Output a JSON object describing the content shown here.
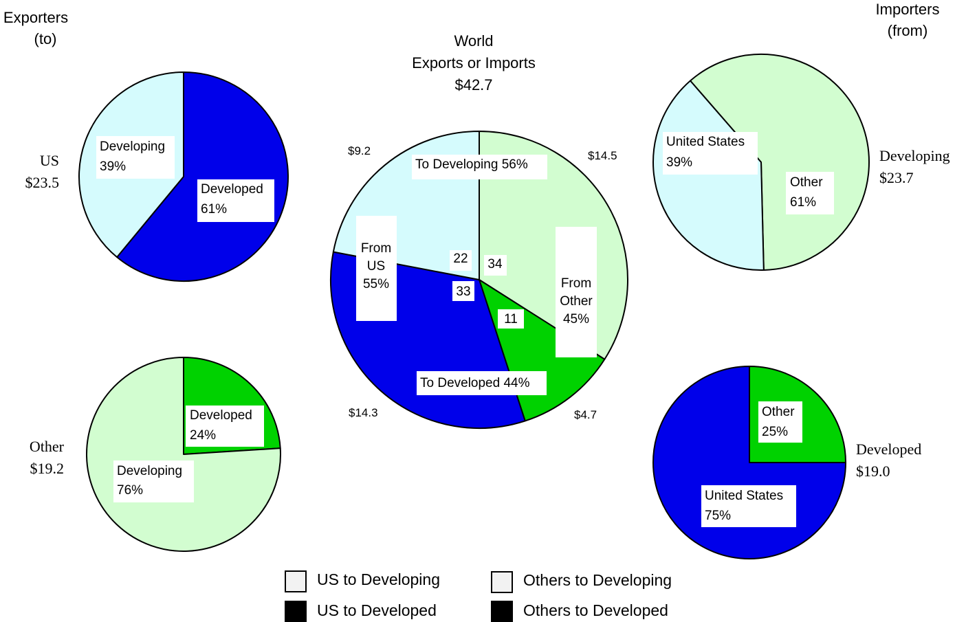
{
  "header": {
    "exporters_line1": "Exporters",
    "exporters_line2": "(to)",
    "importers_line1": "Importers",
    "importers_line2": "(from)"
  },
  "world_title": {
    "line1": "World",
    "line2": "Exports or Imports",
    "line3": "$42.7"
  },
  "side_labels": {
    "us": {
      "name": "US",
      "amount": "$23.5"
    },
    "other": {
      "name": "Other",
      "amount": "$19.2"
    },
    "developing": {
      "name": "Developing",
      "amount": "$23.7"
    },
    "developed": {
      "name": "Developed",
      "amount": "$19.0"
    }
  },
  "colors": {
    "us_to_developing": "#d5fbfd",
    "us_to_developed": "#0000ea",
    "others_to_developing": "#d2fdd0",
    "others_to_developed": "#00d200",
    "outline": "#000000"
  },
  "legend": {
    "items": [
      {
        "label": "US to Developing",
        "fill": "#f2f2f2"
      },
      {
        "label": "Others to Developing",
        "fill": "#f2f2f2"
      },
      {
        "label": "US to Developed",
        "fill": "#000000"
      },
      {
        "label": "Others to Developed",
        "fill": "#000000"
      }
    ]
  },
  "chart_data": [
    {
      "type": "pie",
      "id": "us_exporters",
      "slices": [
        {
          "name": "Developed",
          "value": 61,
          "label": "61%",
          "color": "#0000ea"
        },
        {
          "name": "Developing",
          "value": 39,
          "label": "39%",
          "color": "#d5fbfd"
        }
      ]
    },
    {
      "type": "pie",
      "id": "other_exporters",
      "slices": [
        {
          "name": "Developed",
          "value": 24,
          "label": "24%",
          "color": "#00d200"
        },
        {
          "name": "Developing",
          "value": 76,
          "label": "76%",
          "color": "#d2fdd0"
        }
      ]
    },
    {
      "type": "pie",
      "id": "world",
      "slices": [
        {
          "name": "Others to Developing",
          "value": 34,
          "amount": "$14.5",
          "color": "#d2fdd0"
        },
        {
          "name": "Others to Developed",
          "value": 11,
          "amount": "$4.7",
          "color": "#00d200"
        },
        {
          "name": "US to Developed",
          "value": 33,
          "amount": "$14.3",
          "color": "#0000ea"
        },
        {
          "name": "US to Developing",
          "value": 22,
          "amount": "$9.2",
          "color": "#d5fbfd"
        }
      ],
      "group_labels": {
        "to_developing": "To Developing 56%",
        "to_developed": "To Developed 44%",
        "from_us": [
          "From",
          "US",
          "55%"
        ],
        "from_other": [
          "From",
          "Other",
          "45%"
        ]
      }
    },
    {
      "type": "pie",
      "id": "developing_importers",
      "slices": [
        {
          "name": "Other",
          "value": 61,
          "label": "61%",
          "color": "#d2fdd0"
        },
        {
          "name": "United States",
          "value": 39,
          "label": "39%",
          "color": "#d5fbfd"
        }
      ]
    },
    {
      "type": "pie",
      "id": "developed_importers",
      "slices": [
        {
          "name": "Other",
          "value": 25,
          "label": "25%",
          "color": "#00d200"
        },
        {
          "name": "United States",
          "value": 75,
          "label": "75%",
          "color": "#0000ea"
        }
      ]
    }
  ]
}
